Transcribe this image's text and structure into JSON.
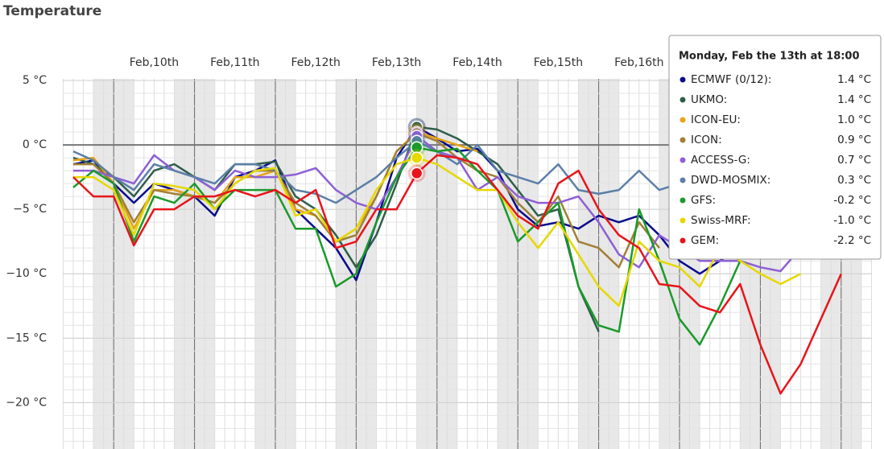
{
  "chart_data": {
    "type": "line",
    "title": "Temperature",
    "categories": [
      null,
      null,
      null,
      null,
      "Feb,10th",
      null,
      null,
      null,
      "Feb,11th",
      null,
      null,
      null,
      "Feb,12th",
      null,
      null,
      null,
      "Feb,13th",
      null,
      null,
      null,
      "Feb,14th",
      null,
      null,
      null,
      "Feb,15th",
      null,
      null,
      null,
      "Feb,16th",
      null,
      null,
      null,
      null,
      null,
      null,
      null,
      null,
      null,
      null,
      null
    ],
    "ylim": [
      -23.6,
      5
    ],
    "yticks": [
      {
        "value": 5,
        "label": "5 °C"
      },
      {
        "value": 0,
        "label": "0 °C"
      },
      {
        "value": -5,
        "label": "−5 °C"
      },
      {
        "value": -10,
        "label": "−10 °C"
      },
      {
        "value": -15,
        "label": "−15 °C"
      },
      {
        "value": -20,
        "label": "−20 °C"
      }
    ],
    "grid": true,
    "series": [
      {
        "name": "ECMWF (0/12):",
        "color": "#0a0a8c",
        "values": [
          -1.5,
          -1.2,
          -3,
          -4.5,
          -3,
          -3.5,
          -4,
          -5.5,
          -2.5,
          -2,
          -1.2,
          -5,
          -6.5,
          -8,
          -10.5,
          -6,
          -1,
          1.4,
          0.5,
          -0.5,
          -0.3,
          -2,
          -5,
          -6.3,
          -6,
          -6.5,
          -5.5,
          -6,
          -5.5,
          -7,
          -9,
          -10,
          -9,
          -8,
          null,
          null,
          null,
          null,
          null,
          null
        ]
      },
      {
        "name": "UKMO:",
        "color": "#2e5e4a",
        "values": [
          -1,
          -1.5,
          -2.5,
          -4,
          -2,
          -1.5,
          -2.5,
          -3.5,
          -1.5,
          -1.5,
          -1.3,
          -4,
          -5,
          -7,
          -9.5,
          -7,
          -3,
          1.4,
          1.2,
          0.5,
          -0.5,
          -1.5,
          -3.5,
          -5.5,
          -5,
          -11,
          -14.5,
          null,
          null,
          null,
          null,
          null,
          null,
          null,
          null,
          null,
          null,
          null,
          null,
          null
        ]
      },
      {
        "name": "ICON-EU:",
        "color": "#e8a317",
        "values": [
          -1.2,
          -1,
          -3,
          -6.5,
          -3.5,
          -3.5,
          -4,
          -4.5,
          -2.5,
          -2.5,
          -2,
          -5,
          -5.5,
          -7.5,
          -6.5,
          -4,
          -0.5,
          1.0,
          0.5,
          0,
          -0.5,
          null,
          null,
          null,
          null,
          null,
          null,
          null,
          null,
          null,
          null,
          null,
          null,
          null,
          null,
          null,
          null,
          null,
          null,
          null
        ]
      },
      {
        "name": "ICON:",
        "color": "#a08035",
        "values": [
          -1.5,
          -1.5,
          -3,
          -6,
          -3.5,
          -3.8,
          -4,
          -4.5,
          -3,
          -2,
          -2,
          -4.5,
          -5.5,
          -7.5,
          -7,
          -4,
          -0.5,
          0.9,
          0.3,
          -1,
          -2,
          -2.5,
          -4.5,
          -6,
          -4,
          -7.5,
          -8,
          -9.5,
          -6,
          -8,
          null,
          null,
          null,
          null,
          null,
          null,
          null,
          null,
          null,
          null
        ]
      },
      {
        "name": "ACCESS-G:",
        "color": "#8e5fd6",
        "values": [
          -2,
          -2,
          -2.5,
          -3,
          -0.8,
          -2,
          -2.5,
          -3.5,
          -2,
          -2.5,
          -2.5,
          -2.3,
          -1.8,
          -3.5,
          -4.5,
          -5,
          -2.5,
          0.7,
          -0.5,
          -1,
          -3.5,
          -2.5,
          -4,
          -4.5,
          -4.5,
          -4,
          -6,
          -8.5,
          -9.5,
          -7,
          -8,
          -9,
          -9,
          -9,
          -9.5,
          -9.8,
          -8,
          null,
          null,
          null
        ]
      },
      {
        "name": "DWD-MOSMIX:",
        "color": "#5b7fa8",
        "values": [
          -0.5,
          -1.2,
          -2.5,
          -3.5,
          -1.5,
          -2,
          -2.5,
          -3,
          -1.5,
          -1.5,
          -2,
          -3.5,
          -3.8,
          -4.5,
          -3.5,
          -2.5,
          -1,
          0.3,
          -0.5,
          -1.5,
          0,
          -2,
          -2.5,
          -3,
          -1.5,
          -3.5,
          -3.8,
          -3.5,
          -2,
          -3.5,
          -3,
          null,
          null,
          null,
          null,
          null,
          null,
          null,
          null,
          null
        ]
      },
      {
        "name": "GFS:",
        "color": "#1a9a2a",
        "values": [
          -3.3,
          -2,
          -3,
          -7.5,
          -4,
          -4.5,
          -3,
          -5,
          -3.5,
          -3.5,
          -3.5,
          -6.5,
          -6.5,
          -11,
          -10,
          -6,
          -2.5,
          -0.2,
          -0.5,
          -0.3,
          -2,
          -3.5,
          -7.5,
          -6,
          -4.5,
          -11,
          -14,
          -14.5,
          -5,
          -9,
          -13.5,
          -15.5,
          -12.5,
          -9,
          null,
          null,
          null,
          null,
          null,
          null
        ]
      },
      {
        "name": "Swiss-MRF:",
        "color": "#e6d800",
        "values": [
          -2.5,
          -2.5,
          -3.5,
          -7,
          -3,
          -3.2,
          -3.5,
          -5,
          -3,
          -2,
          -1.8,
          -5.5,
          -5,
          -7.5,
          -6.5,
          -3.5,
          -1.5,
          -1.0,
          -1.5,
          -2.5,
          -3.5,
          -3.5,
          -6,
          -8,
          -6,
          -8.5,
          -11,
          -12.5,
          -7.5,
          -9,
          -9.5,
          -11,
          -8,
          -9,
          -10,
          -10.8,
          -10,
          null,
          null,
          null
        ]
      },
      {
        "name": "GEM:",
        "color": "#e8141a",
        "values": [
          -2.5,
          -4,
          -4,
          -7.8,
          -5,
          -5,
          -4,
          -4,
          -3.5,
          -4,
          -3.5,
          -4.5,
          -3.5,
          -8,
          -7.5,
          -5,
          -5,
          -2.2,
          -0.8,
          -1,
          -1.5,
          -3.5,
          -5.5,
          -6.5,
          -3,
          -2,
          -5,
          -7,
          -8,
          -10.8,
          -11,
          -12.5,
          -13,
          -10.8,
          -15.5,
          -19.3,
          -17,
          -13.5,
          -10,
          null
        ]
      }
    ],
    "tooltip": {
      "title": "Monday, Feb the 13th at 18:00",
      "value_labels": [
        "1.4 °C",
        "1.4 °C",
        "1.0 °C",
        "0.9 °C",
        "0.7 °C",
        "0.3 °C",
        "-0.2 °C",
        "-1.0 °C",
        "-2.2 °C"
      ]
    }
  }
}
